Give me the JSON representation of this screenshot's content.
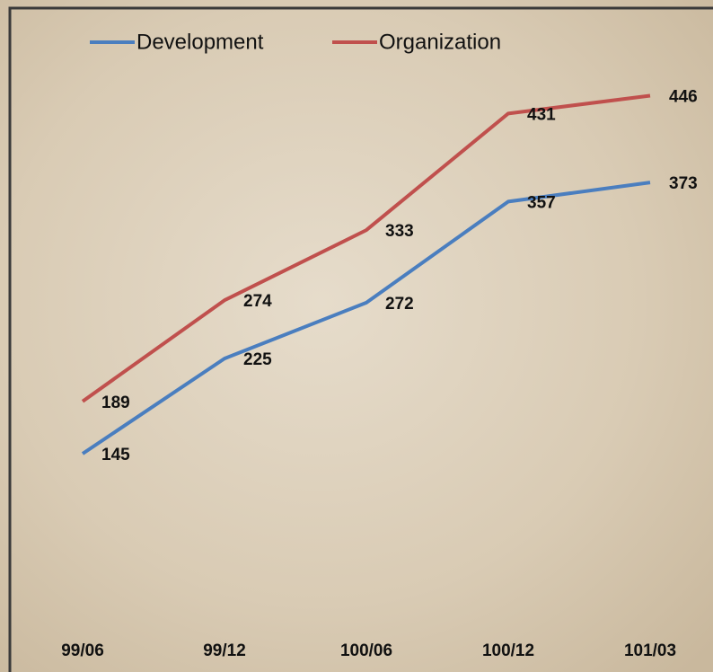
{
  "chart_data": {
    "type": "line",
    "categories": [
      "99/06",
      "99/12",
      "100/06",
      "100/12",
      "101/03"
    ],
    "series": [
      {
        "name": "Development",
        "color": "#4a7ebf",
        "values": [
          145,
          225,
          272,
          357,
          373
        ]
      },
      {
        "name": "Organization",
        "color": "#c0504d",
        "values": [
          189,
          274,
          333,
          431,
          446
        ]
      }
    ],
    "ylim": [
      0,
      500
    ]
  }
}
